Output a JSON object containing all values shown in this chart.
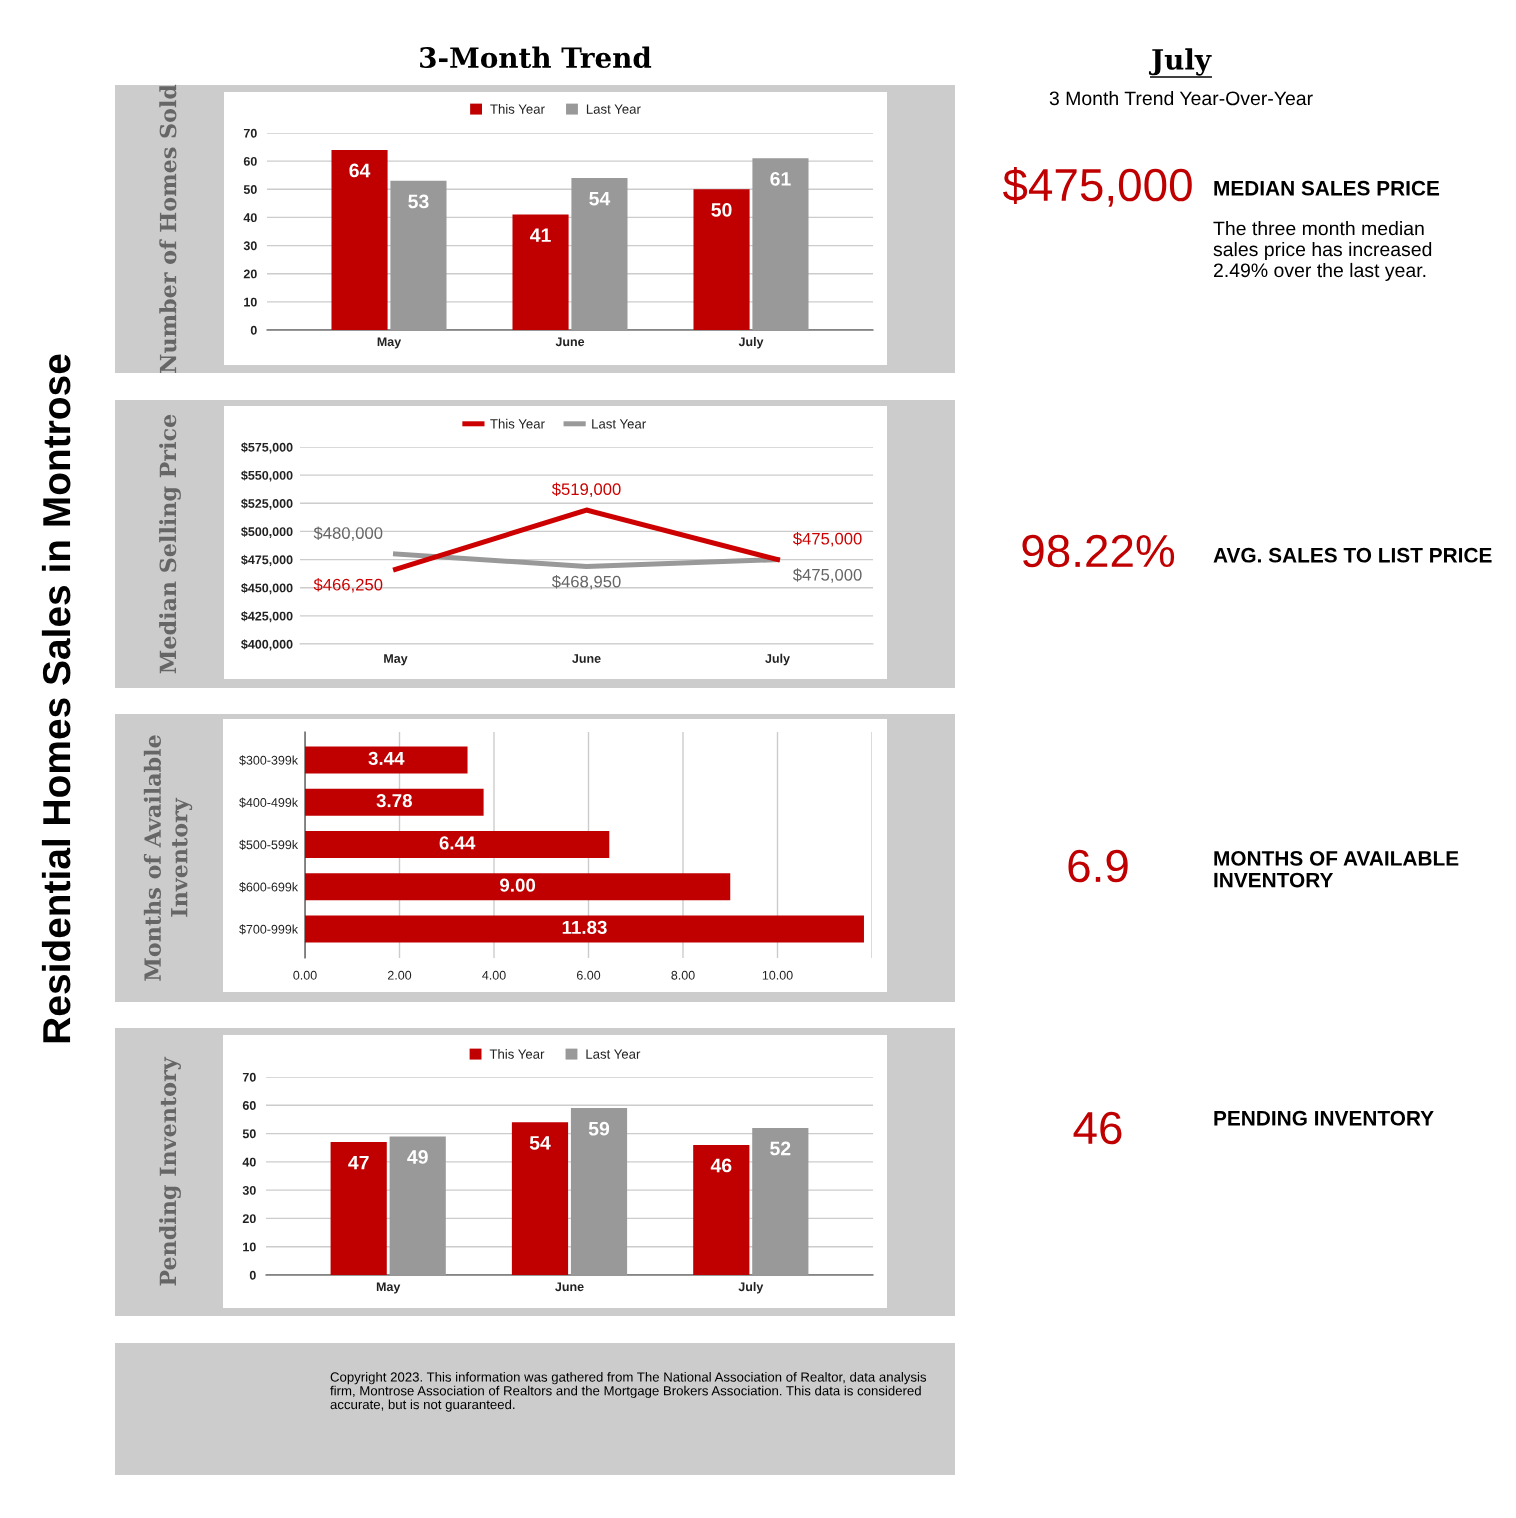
{
  "chart_data": [
    {
      "type": "other",
      "title": "Residential Homes Sales in Montrose",
      "annotations": [
        "Copyright 2023. This information was gathered from The National Association of Realtor, data analysis firm, Montrose Association of Realtors and the Mortgage Brokers Association. This data is considered accurate, but is not guaranteed."
      ]
    },
    {
      "type": "bar",
      "title": "3-Month Trend",
      "ylabel": "Number of Homes Sold",
      "categories": [
        "May",
        "June",
        "July"
      ],
      "series": [
        {
          "name": "This Year",
          "color": "#c00000",
          "values": [
            64,
            41,
            50
          ]
        },
        {
          "name": "Last Year",
          "color": "#999999",
          "values": [
            53,
            54,
            61
          ]
        }
      ],
      "ylim": [
        0,
        70
      ],
      "yticks": [
        0,
        10,
        20,
        30,
        40,
        50,
        60,
        70
      ],
      "grid": "y",
      "legend": "top",
      "data_labels": true
    },
    {
      "type": "line",
      "ylabel": "Median Selling Price",
      "categories": [
        "May",
        "June",
        "July"
      ],
      "series": [
        {
          "name": "This Year",
          "color": "#cc0000",
          "values": [
            466250,
            519000,
            475000
          ],
          "value_labels": [
            "$466,250",
            "$519,000",
            "$475,000"
          ]
        },
        {
          "name": "Last Year",
          "color": "#999999",
          "values": [
            480000,
            468950,
            475000
          ],
          "value_labels": [
            "$480,000",
            "$468,950",
            "$475,000"
          ]
        }
      ],
      "ylim": [
        400000,
        575000
      ],
      "yticks": [
        {
          "value": 400000,
          "label": "$400,000"
        },
        {
          "value": 425000,
          "label": "$425,000"
        },
        {
          "value": 450000,
          "label": "$450,000"
        },
        {
          "value": 475000,
          "label": "$475,000"
        },
        {
          "value": 500000,
          "label": "$500,000"
        },
        {
          "value": 525000,
          "label": "$525,000"
        },
        {
          "value": 550000,
          "label": "$550,000"
        },
        {
          "value": 575000,
          "label": "$575,000"
        }
      ],
      "grid": "y",
      "legend": "top"
    },
    {
      "type": "bar",
      "orientation": "horizontal",
      "ylabel": "Months of Available\nInventory",
      "categories": [
        "$300-399k",
        "$400-499k",
        "$500-599k",
        "$600-699k",
        "$700-999k"
      ],
      "values": [
        3.44,
        3.78,
        6.44,
        9.0,
        11.83
      ],
      "color": "#c00000",
      "value_labels": [
        "3.44",
        "3.78",
        "6.44",
        "9.00",
        "11.83"
      ],
      "xlim": [
        0,
        12
      ],
      "xticks": [
        {
          "value": 0,
          "label": "0.00"
        },
        {
          "value": 2,
          "label": "2.00"
        },
        {
          "value": 4,
          "label": "4.00"
        },
        {
          "value": 6,
          "label": "6.00"
        },
        {
          "value": 8,
          "label": "8.00"
        },
        {
          "value": 10,
          "label": "10.00"
        },
        {
          "value": 12,
          "label": null
        }
      ],
      "grid": "x"
    },
    {
      "type": "bar",
      "ylabel": "Pending Inventory",
      "categories": [
        "May",
        "June",
        "July"
      ],
      "series": [
        {
          "name": "This Year",
          "color": "#c00000",
          "values": [
            47,
            54,
            46
          ]
        },
        {
          "name": "Last Year",
          "color": "#999999",
          "values": [
            49,
            59,
            52
          ]
        }
      ],
      "ylim": [
        0,
        70
      ],
      "yticks": [
        0,
        10,
        20,
        30,
        40,
        50,
        60,
        70
      ],
      "grid": "y",
      "legend": "top",
      "data_labels": true
    },
    {
      "type": "other",
      "title": "July",
      "subtitle": "3 Month Trend Year-Over-Year",
      "annotations": [
        "$475,000",
        "MEDIAN SALES PRICE",
        "The three month median\nsales price has increased\n2.49% over the last year.",
        "98.22%",
        "AVG. SALES TO LIST PRICE",
        "6.9",
        "MONTHS OF AVAILABLE\nINVENTORY",
        "46",
        "PENDING INVENTORY"
      ]
    }
  ]
}
